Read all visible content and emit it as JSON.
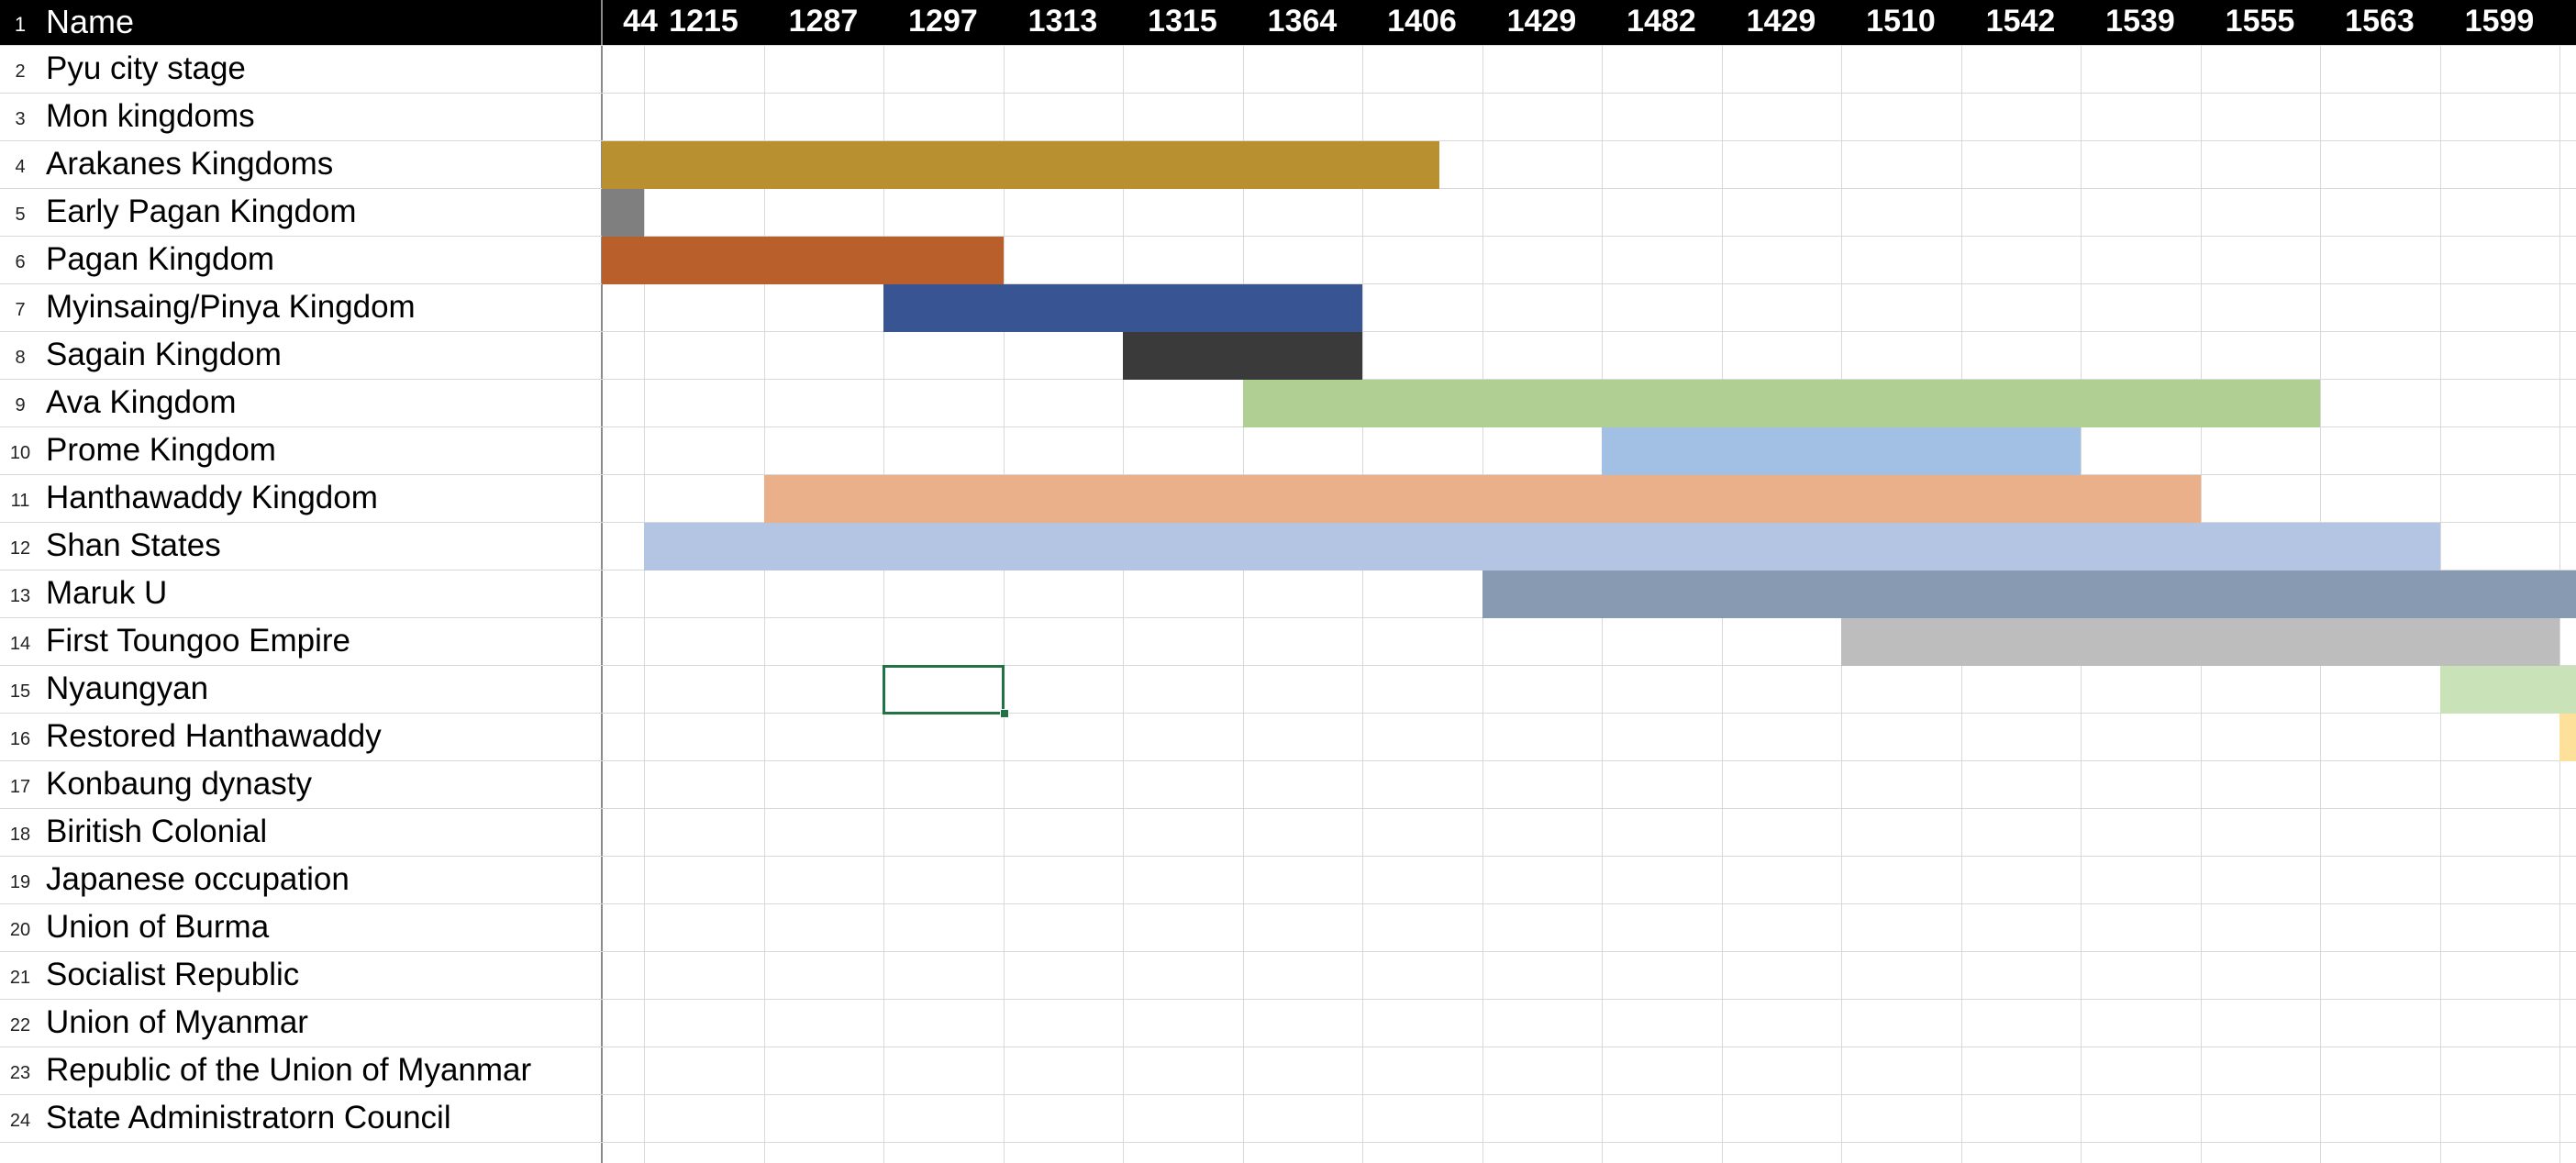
{
  "sheet": {
    "header_row_number": "1",
    "header_name": "Name",
    "years": [
      "44",
      "1215",
      "1287",
      "1297",
      "1313",
      "1315",
      "1364",
      "1406",
      "1429",
      "1482",
      "1429",
      "1510",
      "1542",
      "1539",
      "1555",
      "1563",
      "1599"
    ],
    "rows": [
      {
        "num": "2",
        "name": "Pyu city stage"
      },
      {
        "num": "3",
        "name": "Mon kingdoms"
      },
      {
        "num": "4",
        "name": "Arakanes Kingdoms"
      },
      {
        "num": "5",
        "name": "Early Pagan Kingdom"
      },
      {
        "num": "6",
        "name": "Pagan Kingdom"
      },
      {
        "num": "7",
        "name": "Myinsaing/Pinya Kingdom"
      },
      {
        "num": "8",
        "name": "Sagain Kingdom"
      },
      {
        "num": "9",
        "name": "Ava Kingdom"
      },
      {
        "num": "10",
        "name": "Prome Kingdom"
      },
      {
        "num": "11",
        "name": "Hanthawaddy Kingdom"
      },
      {
        "num": "12",
        "name": "Shan States"
      },
      {
        "num": "13",
        "name": "Maruk U"
      },
      {
        "num": "14",
        "name": "First Toungoo Empire"
      },
      {
        "num": "15",
        "name": "Nyaungyan"
      },
      {
        "num": "16",
        "name": "Restored Hanthawaddy"
      },
      {
        "num": "17",
        "name": "Konbaung dynasty"
      },
      {
        "num": "18",
        "name": "Biritish Colonial"
      },
      {
        "num": "19",
        "name": "Japanese occupation"
      },
      {
        "num": "20",
        "name": "Union of Burma"
      },
      {
        "num": "21",
        "name": "Socialist Republic"
      },
      {
        "num": "22",
        "name": "Union of Myanmar"
      },
      {
        "num": "23",
        "name": "Republic of the Union of Myanmar"
      },
      {
        "num": "24",
        "name": "State Administratorn Council"
      }
    ],
    "bars": [
      {
        "row": 2,
        "from_col": 0,
        "to_col": 7,
        "color": "#b89030"
      },
      {
        "row": 3,
        "from_col": 0,
        "to_col": 0.36,
        "color": "#7f7f7f"
      },
      {
        "row": 4,
        "from_col": 0,
        "to_col": 3.36,
        "color": "#b95f2c"
      },
      {
        "row": 5,
        "from_col": 2.36,
        "to_col": 6.36,
        "color": "#385492"
      },
      {
        "row": 6,
        "from_col": 4.36,
        "to_col": 6.36,
        "color": "#3a3a3a"
      },
      {
        "row": 7,
        "from_col": 5.36,
        "to_col": 14.36,
        "color": "#b0cf93"
      },
      {
        "row": 8,
        "from_col": 8.36,
        "to_col": 12.36,
        "color": "#a1c0e3"
      },
      {
        "row": 9,
        "from_col": 1.36,
        "to_col": 13.36,
        "color": "#eab08a"
      },
      {
        "row": 10,
        "from_col": 0.36,
        "to_col": 15.36,
        "color": "#b4c5e4"
      },
      {
        "row": 11,
        "from_col": 7.36,
        "to_col": 16.6,
        "color": "#8899b2"
      },
      {
        "row": 12,
        "from_col": 10.36,
        "to_col": 16.36,
        "color": "#bdbdbd"
      },
      {
        "row": 13,
        "from_col": 15.36,
        "to_col": 16.6,
        "color": "#c9e2b8"
      },
      {
        "row": 14,
        "from_col": 16.36,
        "to_col": 16.6,
        "color": "#fde19a"
      }
    ],
    "selected_cell": {
      "row": 13,
      "col": 2.36
    }
  }
}
